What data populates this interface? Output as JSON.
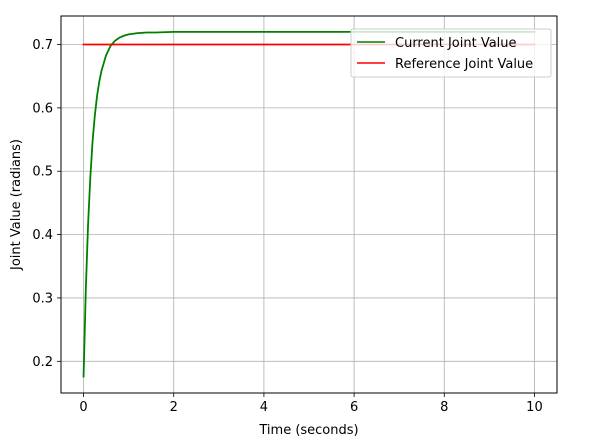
{
  "chart_data": {
    "type": "line",
    "title": "",
    "xlabel": "Time (seconds)",
    "ylabel": "Joint Value (radians)",
    "xlim": [
      -0.5,
      10.5
    ],
    "ylim": [
      0.15,
      0.745
    ],
    "x_ticks": [
      0,
      2,
      4,
      6,
      8,
      10
    ],
    "x_tick_labels": [
      "0",
      "2",
      "4",
      "6",
      "8",
      "10"
    ],
    "y_ticks": [
      0.2,
      0.3,
      0.4,
      0.5,
      0.6,
      0.7
    ],
    "y_tick_labels": [
      "0.2",
      "0.3",
      "0.4",
      "0.5",
      "0.6",
      "0.7"
    ],
    "grid": true,
    "legend_position": "top-right",
    "series": [
      {
        "name": "Current Joint Value",
        "color": "#008000",
        "x": [
          0,
          0.05,
          0.1,
          0.15,
          0.2,
          0.25,
          0.3,
          0.35,
          0.4,
          0.5,
          0.6,
          0.7,
          0.8,
          0.9,
          1.0,
          1.2,
          1.4,
          1.6,
          2.0,
          3.0,
          4.0,
          6.0,
          8.0,
          10.0
        ],
        "y": [
          0.176,
          0.313,
          0.415,
          0.49,
          0.547,
          0.588,
          0.619,
          0.642,
          0.659,
          0.683,
          0.698,
          0.706,
          0.711,
          0.714,
          0.716,
          0.718,
          0.719,
          0.719,
          0.72,
          0.72,
          0.72,
          0.72,
          0.72,
          0.72
        ]
      },
      {
        "name": "Reference Joint Value",
        "color": "#ff0000",
        "x": [
          0,
          10
        ],
        "y": [
          0.7,
          0.7
        ]
      }
    ]
  }
}
